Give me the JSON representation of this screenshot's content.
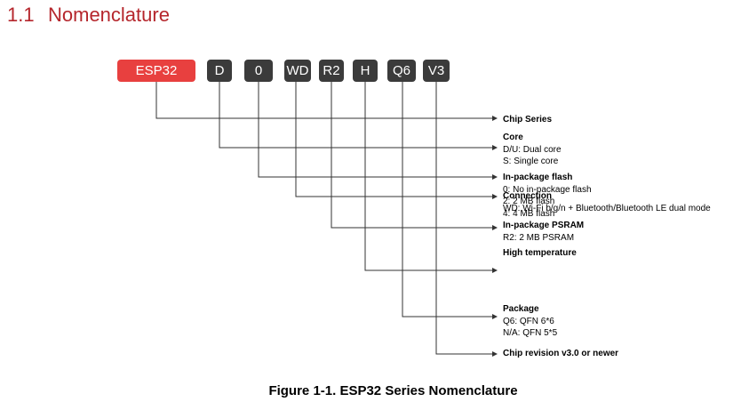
{
  "section": {
    "number": "1.1",
    "title": "Nomenclature"
  },
  "colors": {
    "title": "#b5262c",
    "accent_box": "#e8403f",
    "dark_box": "#3b3b3b",
    "line": "#333333"
  },
  "segments": [
    {
      "text": "ESP32"
    },
    {
      "text": "D"
    },
    {
      "text": "0"
    },
    {
      "text": "WD"
    },
    {
      "text": "R2"
    },
    {
      "text": "H"
    },
    {
      "text": "Q6"
    },
    {
      "text": "V3"
    }
  ],
  "descriptions": [
    {
      "title": "Chip revision v3.0 or newer",
      "lines": []
    },
    {
      "title": "Package",
      "lines": [
        "Q6: QFN 6*6",
        "N/A: QFN 5*5"
      ]
    },
    {
      "title": "High temperature",
      "lines": []
    },
    {
      "title": "In-package PSRAM",
      "lines": [
        "R2: 2 MB PSRAM"
      ]
    },
    {
      "title": "Connection",
      "lines": [
        "WD: Wi-Fi b/g/n + Bluetooth/Bluetooth LE dual mode"
      ]
    },
    {
      "title": "In-package flash",
      "lines": [
        "0: No in-package flash",
        "2: 2 MB flash",
        "4: 4 MB flash"
      ]
    },
    {
      "title": "Core",
      "lines": [
        "D/U: Dual core",
        "S: Single core"
      ]
    },
    {
      "title": "Chip Series",
      "lines": []
    }
  ],
  "caption": "Figure 1-1. ESP32 Series Nomenclature"
}
